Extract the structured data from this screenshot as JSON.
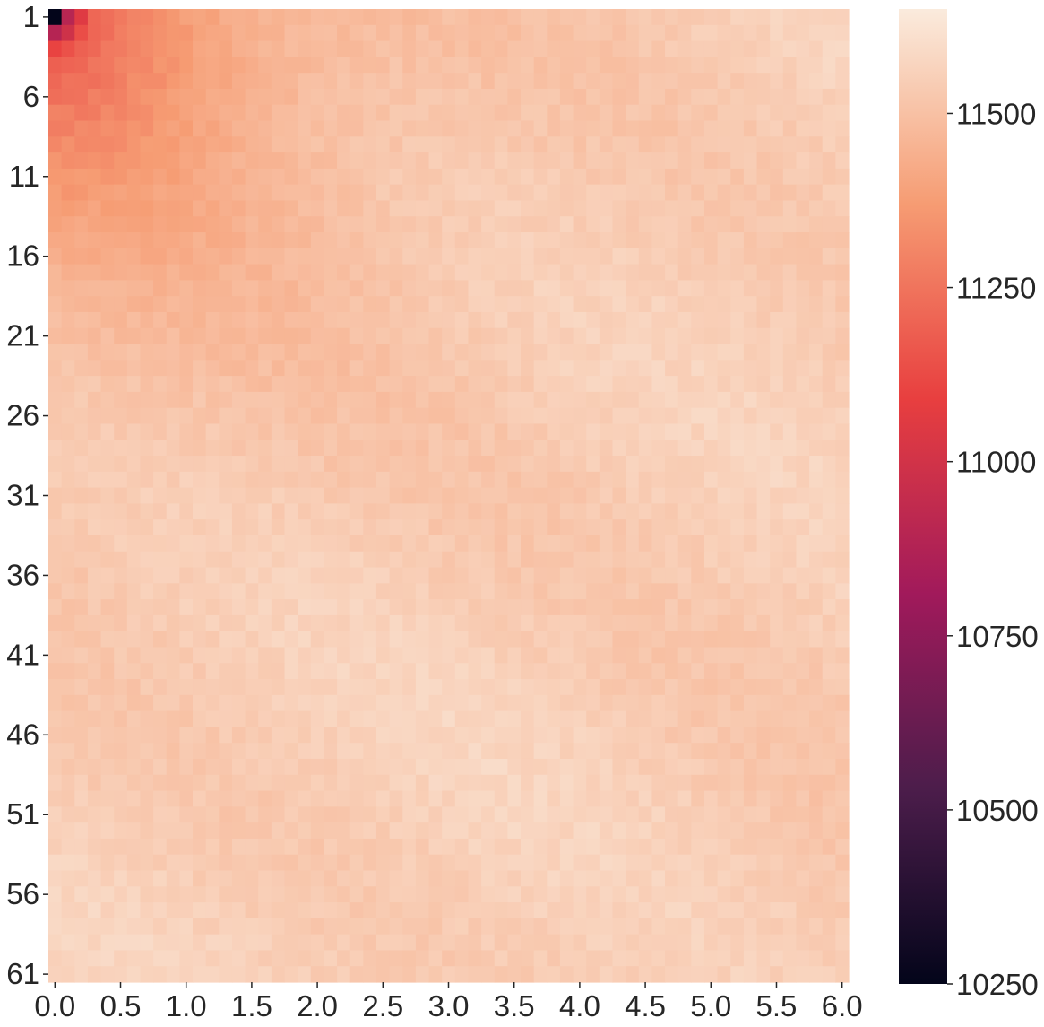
{
  "chart_data": {
    "type": "heatmap",
    "title": "",
    "xlabel": "",
    "ylabel": "",
    "x_range": [
      0.0,
      6.0
    ],
    "x_step": 0.1,
    "y_range": [
      1,
      61
    ],
    "y_step": 1,
    "x_tick_labels": [
      "0.0",
      "0.5",
      "1.0",
      "1.5",
      "2.0",
      "2.5",
      "3.0",
      "3.5",
      "4.0",
      "4.5",
      "5.0",
      "5.5",
      "6.0"
    ],
    "y_tick_labels": [
      "1",
      "6",
      "11",
      "16",
      "21",
      "26",
      "31",
      "36",
      "41",
      "46",
      "51",
      "56",
      "61"
    ],
    "colorbar": {
      "min": 10250,
      "max": 11650,
      "tick_labels": [
        "10250",
        "10500",
        "10750",
        "11000",
        "11250",
        "11500"
      ],
      "colormap": "rocket",
      "stops": [
        "#03051a",
        "#4c1d4b",
        "#a11a5b",
        "#e83f3f",
        "#f69c73",
        "#faebdd"
      ]
    },
    "grid": false,
    "value_model": {
      "description_note": "",
      "base": 11560,
      "low_corner_value": 10250,
      "left_column_low_region_rows": 28,
      "top_row_low_region_x": 3.5,
      "bottom_right_value": 11510
    }
  }
}
